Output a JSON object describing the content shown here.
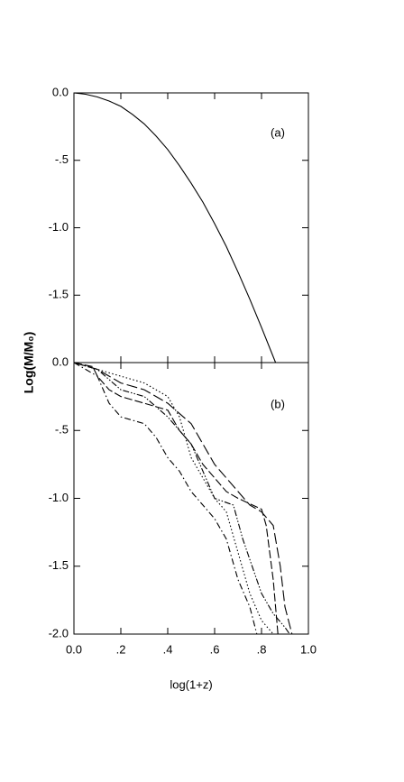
{
  "chart_data": [
    {
      "type": "line",
      "panel_label": "(a)",
      "ylabel": "Log(M/M₀)",
      "xlim": [
        0,
        1
      ],
      "ylim": [
        -2,
        0
      ],
      "yticks": [
        {
          "value": 0,
          "label": "0.0"
        },
        {
          "value": -0.5,
          "label": "-.5"
        },
        {
          "value": -1,
          "label": "-1.0"
        },
        {
          "value": -1.5,
          "label": "-1.5"
        }
      ],
      "series": [
        {
          "color": "#000000",
          "dash": "none",
          "x": [
            0,
            0.05,
            0.1,
            0.15,
            0.2,
            0.25,
            0.3,
            0.35,
            0.4,
            0.45,
            0.5,
            0.55,
            0.6,
            0.65,
            0.7,
            0.75,
            0.8,
            0.86
          ],
          "values": [
            0,
            -0.01,
            -0.03,
            -0.06,
            -0.1,
            -0.16,
            -0.23,
            -0.32,
            -0.42,
            -0.54,
            -0.67,
            -0.81,
            -0.97,
            -1.14,
            -1.33,
            -1.53,
            -1.74,
            -2.0
          ]
        }
      ]
    },
    {
      "type": "line",
      "panel_label": "(b)",
      "xlabel": "log(1+z)",
      "xlim": [
        0,
        1
      ],
      "ylim": [
        -2,
        0
      ],
      "xticks": [
        {
          "value": 0,
          "label": "0.0"
        },
        {
          "value": 0.2,
          "label": ".2"
        },
        {
          "value": 0.4,
          "label": ".4"
        },
        {
          "value": 0.6,
          "label": ".6"
        },
        {
          "value": 0.8,
          "label": ".8"
        },
        {
          "value": 1,
          "label": "1.0"
        }
      ],
      "yticks": [
        {
          "value": 0,
          "label": "0.0"
        },
        {
          "value": -0.5,
          "label": "-.5"
        },
        {
          "value": -1,
          "label": "-1.0"
        },
        {
          "value": -1.5,
          "label": "-1.5"
        },
        {
          "value": -2,
          "label": "-2.0"
        }
      ],
      "series": [
        {
          "color": "#000000",
          "dash": "9 3",
          "x": [
            0,
            0.08,
            0.1,
            0.15,
            0.2,
            0.3,
            0.4,
            0.45,
            0.5,
            0.55,
            0.6,
            0.65,
            0.7,
            0.8,
            0.82,
            0.85,
            0.87
          ],
          "values": [
            0,
            -0.03,
            -0.1,
            -0.2,
            -0.25,
            -0.3,
            -0.35,
            -0.5,
            -0.6,
            -0.75,
            -0.85,
            -0.95,
            -1.0,
            -1.08,
            -1.2,
            -1.6,
            -2.0
          ]
        },
        {
          "color": "#000000",
          "dash": "1.5 2.5",
          "x": [
            0,
            0.1,
            0.2,
            0.3,
            0.4,
            0.45,
            0.5,
            0.55,
            0.6,
            0.65,
            0.7,
            0.75,
            0.8,
            0.85
          ],
          "values": [
            0,
            -0.05,
            -0.1,
            -0.15,
            -0.25,
            -0.4,
            -0.7,
            -0.85,
            -1.0,
            -1.1,
            -1.4,
            -1.7,
            -1.9,
            -2.0
          ]
        },
        {
          "color": "#000000",
          "dash": "7 3 1.5 3",
          "x": [
            0,
            0.1,
            0.15,
            0.2,
            0.3,
            0.35,
            0.4,
            0.45,
            0.5,
            0.55,
            0.6,
            0.65,
            0.7,
            0.75,
            0.78
          ],
          "values": [
            0,
            -0.1,
            -0.3,
            -0.4,
            -0.45,
            -0.55,
            -0.7,
            -0.8,
            -0.95,
            -1.05,
            -1.15,
            -1.3,
            -1.6,
            -1.8,
            -2.0
          ]
        },
        {
          "color": "#000000",
          "dash": "7 2 1.5 2 1.5 2",
          "x": [
            0,
            0.1,
            0.2,
            0.3,
            0.4,
            0.5,
            0.55,
            0.6,
            0.68,
            0.72,
            0.76,
            0.8,
            0.85,
            0.9,
            0.92
          ],
          "values": [
            0,
            -0.05,
            -0.2,
            -0.25,
            -0.4,
            -0.6,
            -0.8,
            -1.0,
            -1.05,
            -1.3,
            -1.5,
            -1.7,
            -1.85,
            -1.95,
            -2.0
          ]
        },
        {
          "color": "#000000",
          "dash": "12 4",
          "x": [
            0,
            0.1,
            0.2,
            0.3,
            0.4,
            0.5,
            0.6,
            0.7,
            0.75,
            0.8,
            0.85,
            0.88,
            0.9,
            0.93
          ],
          "values": [
            0,
            -0.05,
            -0.15,
            -0.2,
            -0.3,
            -0.45,
            -0.75,
            -0.95,
            -1.05,
            -1.1,
            -1.2,
            -1.5,
            -1.8,
            -2.0
          ]
        }
      ]
    }
  ]
}
